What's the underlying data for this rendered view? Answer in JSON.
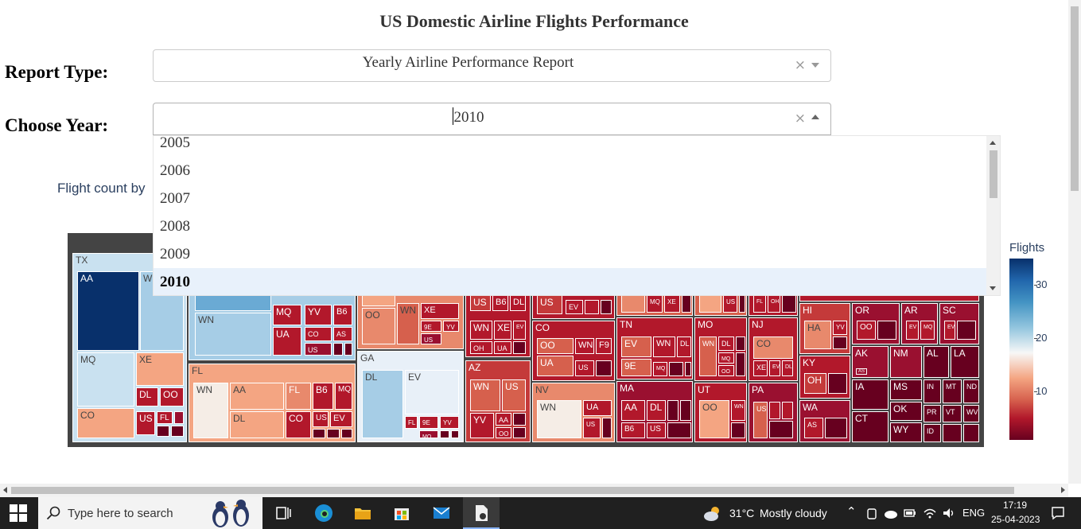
{
  "page": {
    "title": "US Domestic Airline Flights Performance"
  },
  "report_type": {
    "label": "Report Type:",
    "value": "Yearly Airline Performance Report",
    "clear": "×"
  },
  "year": {
    "label": "Choose Year:",
    "value": "2010",
    "clear": "×",
    "options": [
      "2005",
      "2006",
      "2007",
      "2008",
      "2009",
      "2010"
    ],
    "selected": "2010"
  },
  "chart_subtitle": "Flight count by",
  "chart_data": {
    "type": "treemap",
    "colorbar": {
      "title": "Flights",
      "ticks": [
        10,
        20,
        30
      ],
      "colorscale": [
        "#67001f",
        "#b2182b",
        "#d6604d",
        "#f4a582",
        "#f7f7f7",
        "#92c5de",
        "#4393c3",
        "#2166ac",
        "#08306b"
      ]
    },
    "states": [
      {
        "state": "TX",
        "carriers": [
          "AA",
          "W",
          "MQ",
          "XE",
          "DL",
          "OO",
          "CO",
          "US",
          "FL"
        ]
      },
      {
        "state": "FL",
        "carriers": [
          "WN",
          "AA",
          "FL",
          "B6",
          "MQ",
          "DL",
          "CO",
          "US",
          "EV"
        ]
      },
      {
        "state": "GA",
        "carriers": [
          "DL",
          "EV",
          "FL",
          "9E",
          "YV",
          "MQ",
          "OO"
        ]
      },
      {
        "state": "AZ",
        "carriers": [
          "WN",
          "US",
          "YV",
          "AA",
          "OO"
        ]
      },
      {
        "state": "CO",
        "carriers": [
          "OO",
          "WN",
          "F9",
          "UA",
          "US"
        ]
      },
      {
        "state": "NV",
        "carriers": [
          "WN",
          "UA",
          "US"
        ]
      },
      {
        "state": "TN",
        "carriers": [
          "EV",
          "WN",
          "DL",
          "9E",
          "MQ"
        ]
      },
      {
        "state": "MA",
        "carriers": [
          "AA",
          "DL",
          "B6",
          "US"
        ]
      },
      {
        "state": "MO",
        "carriers": [
          "WN",
          "DL",
          "MQ",
          "OO",
          "EV"
        ]
      },
      {
        "state": "UT",
        "carriers": [
          "OO"
        ]
      },
      {
        "state": "NJ",
        "carriers": [
          "CO",
          "XE",
          "EV",
          "DL"
        ]
      },
      {
        "state": "PA",
        "carriers": [
          "US"
        ]
      },
      {
        "state": "HI",
        "carriers": [
          "HA",
          "YV"
        ]
      },
      {
        "state": "KY",
        "carriers": [
          "OH"
        ]
      },
      {
        "state": "WA",
        "carriers": [
          "AS"
        ]
      },
      {
        "state": "OR",
        "carriers": [
          "OO"
        ]
      },
      {
        "state": "AR",
        "carriers": [
          "EV",
          "MQ"
        ]
      },
      {
        "state": "SC",
        "carriers": [
          "EV"
        ]
      },
      {
        "state": "AK",
        "carriers": [
          "AS"
        ]
      },
      {
        "state": "NM",
        "carriers": []
      },
      {
        "state": "AL",
        "carriers": []
      },
      {
        "state": "LA",
        "carriers": []
      },
      {
        "state": "IA",
        "carriers": []
      },
      {
        "state": "MS",
        "carriers": []
      },
      {
        "state": "IN",
        "carriers": []
      },
      {
        "state": "MT",
        "carriers": []
      },
      {
        "state": "ND",
        "carriers": []
      },
      {
        "state": "OK",
        "carriers": []
      },
      {
        "state": "CT",
        "carriers": []
      },
      {
        "state": "PR",
        "carriers": []
      },
      {
        "state": "VT",
        "carriers": []
      },
      {
        "state": "WV",
        "carriers": []
      },
      {
        "state": "WY",
        "carriers": []
      },
      {
        "state": "ID",
        "carriers": []
      }
    ]
  },
  "taskbar": {
    "search_placeholder": "Type here to search",
    "temperature": "31°C",
    "weather": "Mostly cloudy",
    "language": "ENG",
    "time": "17:19",
    "date": "25-04-2023"
  }
}
